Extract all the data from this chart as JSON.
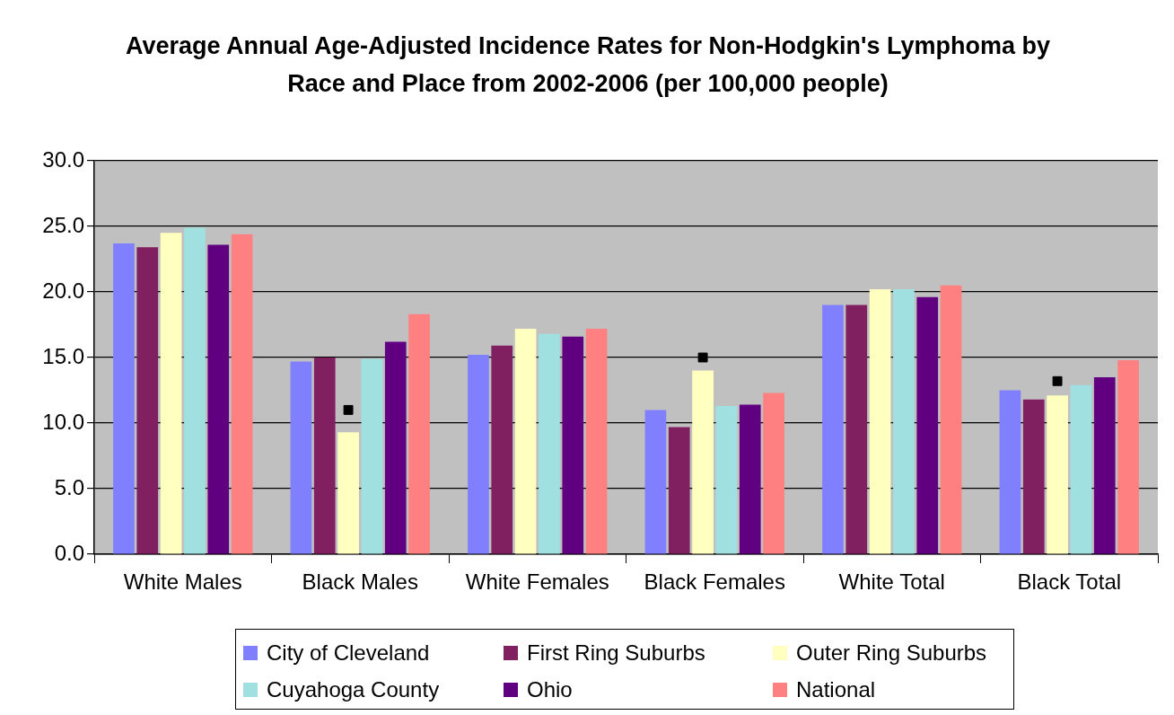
{
  "chart_data": {
    "type": "bar",
    "title": "Average Annual Age-Adjusted Incidence Rates for Non-Hodgkin's Lymphoma by Race and Place from 2002-2006 (per 100,000 people)",
    "categories": [
      "White Males",
      "Black Males",
      "White Females",
      "Black Females",
      "White Total",
      "Black Total"
    ],
    "series": [
      {
        "name": "City of Cleveland",
        "color": "#8080ff",
        "values": [
          23.7,
          14.7,
          15.2,
          11.0,
          19.0,
          12.5
        ]
      },
      {
        "name": "First Ring Suburbs",
        "color": "#802060",
        "values": [
          23.4,
          15.0,
          15.9,
          9.7,
          19.0,
          11.8
        ]
      },
      {
        "name": "Outer Ring Suburbs",
        "color": "#ffffc0",
        "values": [
          24.5,
          9.3,
          17.2,
          14.0,
          20.2,
          12.1
        ]
      },
      {
        "name": "Cuyahoga County",
        "color": "#a0e0e0",
        "values": [
          24.9,
          14.9,
          16.8,
          11.3,
          20.2,
          12.9
        ]
      },
      {
        "name": "Ohio",
        "color": "#600080",
        "values": [
          23.6,
          16.2,
          16.6,
          11.4,
          19.6,
          13.5
        ]
      },
      {
        "name": "National",
        "color": "#ff8080",
        "values": [
          24.4,
          18.3,
          17.2,
          12.3,
          20.5,
          14.8
        ]
      },
      {
        "type": "scatter",
        "color": "#000000",
        "marker": "square",
        "x": [
          "Black Males",
          "Black Females",
          "Black Total"
        ],
        "values": [
          11.0,
          15.0,
          13.2
        ]
      }
    ],
    "ylim": [
      0,
      30
    ],
    "yticks": [
      {
        "value": 0,
        "label": "0.0"
      },
      {
        "value": 5,
        "label": "5.0"
      },
      {
        "value": 10,
        "label": "10.0"
      },
      {
        "value": 15,
        "label": "15.0"
      },
      {
        "value": 20,
        "label": "20.0"
      },
      {
        "value": 25,
        "label": "25.0"
      },
      {
        "value": 30,
        "label": "30.0"
      }
    ],
    "grid": "y",
    "legend": "bottom"
  }
}
